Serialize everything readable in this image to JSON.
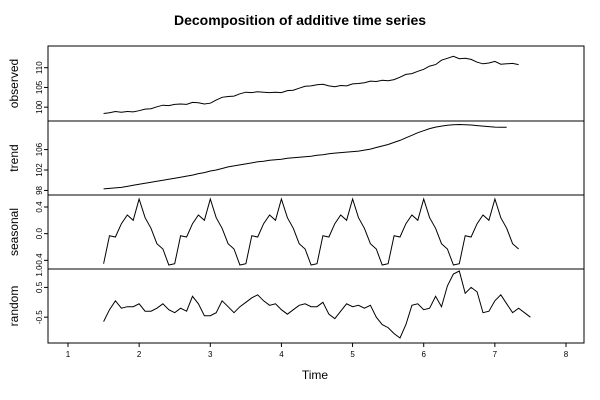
{
  "chart_data": {
    "type": "line",
    "title": "Decomposition of additive time series",
    "xlabel": "Time",
    "xlim": [
      1,
      8
    ],
    "x_ticks": [
      "1",
      "2",
      "3",
      "4",
      "5",
      "6",
      "7",
      "8"
    ],
    "x_start": 1.5,
    "x_step": 0.0833333,
    "panels": [
      {
        "name": "observed",
        "ylabel": "observed",
        "ylim": [
          97,
          115
        ],
        "y_ticks": [
          "100",
          "105",
          "110"
        ],
        "values": [
          98.4,
          98.6,
          98.9,
          98.7,
          98.9,
          98.8,
          99.1,
          99.5,
          99.6,
          100.1,
          100.5,
          100.4,
          100.7,
          100.8,
          100.7,
          101.2,
          101.1,
          100.8,
          101.0,
          101.8,
          102.5,
          102.7,
          102.8,
          103.4,
          103.8,
          103.7,
          103.9,
          103.8,
          103.7,
          103.8,
          103.7,
          104.2,
          104.3,
          104.8,
          105.3,
          105.4,
          105.7,
          105.8,
          105.4,
          105.2,
          105.5,
          105.4,
          105.9,
          106.0,
          106.2,
          106.6,
          106.5,
          106.8,
          106.7,
          107.0,
          107.6,
          108.3,
          108.5,
          109.1,
          109.6,
          110.4,
          110.8,
          111.9,
          112.4,
          112.9,
          112.3,
          112.4,
          112.1,
          111.4,
          111.0,
          111.2,
          111.6,
          110.9,
          111.0,
          111.1,
          110.8
        ]
      },
      {
        "name": "trend",
        "ylabel": "trend",
        "ylim": [
          97.5,
          111.2
        ],
        "y_ticks": [
          "98",
          "102",
          "106"
        ],
        "values": [
          98.3,
          98.4,
          98.5,
          98.6,
          98.8,
          99.0,
          99.2,
          99.4,
          99.6,
          99.8,
          100.0,
          100.2,
          100.4,
          100.6,
          100.8,
          101.0,
          101.3,
          101.5,
          101.8,
          102.0,
          102.3,
          102.6,
          102.8,
          103.0,
          103.2,
          103.4,
          103.6,
          103.7,
          103.9,
          104.0,
          104.1,
          104.3,
          104.4,
          104.5,
          104.6,
          104.7,
          104.9,
          105.0,
          105.2,
          105.3,
          105.4,
          105.5,
          105.6,
          105.7,
          105.9,
          106.1,
          106.4,
          106.7,
          107.0,
          107.4,
          107.8,
          108.3,
          108.8,
          109.3,
          109.7,
          110.1,
          110.4,
          110.6,
          110.75,
          110.85,
          110.9,
          110.85,
          110.8,
          110.7,
          110.6,
          110.5,
          110.4,
          110.35,
          110.35
        ]
      },
      {
        "name": "seasonal",
        "ylabel": "seasonal",
        "ylim": [
          -0.5,
          0.55
        ],
        "y_ticks": [
          "-0.4",
          "0.0",
          "0.4"
        ],
        "values": [
          -0.45,
          -0.03,
          -0.05,
          0.15,
          0.28,
          0.2,
          0.52,
          0.24,
          0.08,
          -0.15,
          -0.23,
          -0.47
        ]
      },
      {
        "name": "random",
        "ylabel": "random",
        "ylim": [
          -1.3,
          1.05
        ],
        "y_ticks": [
          "-0.5",
          "0.5"
        ],
        "top_tick": "1.0",
        "values": [
          -0.65,
          -0.25,
          0.05,
          -0.2,
          -0.15,
          -0.15,
          -0.05,
          -0.3,
          -0.3,
          -0.2,
          -0.05,
          -0.25,
          -0.35,
          -0.2,
          -0.3,
          0.2,
          -0.05,
          -0.45,
          -0.45,
          -0.35,
          0.05,
          -0.15,
          -0.35,
          -0.15,
          0.0,
          0.15,
          0.25,
          0.05,
          -0.1,
          -0.05,
          -0.25,
          -0.4,
          -0.25,
          -0.1,
          -0.05,
          -0.15,
          -0.15,
          0.0,
          -0.4,
          -0.55,
          -0.3,
          -0.05,
          -0.15,
          -0.1,
          -0.2,
          -0.1,
          -0.5,
          -0.75,
          -0.85,
          -1.05,
          -1.2,
          -0.75,
          -0.1,
          -0.05,
          -0.25,
          -0.2,
          0.2,
          -0.15,
          0.55,
          0.95,
          1.05,
          0.3,
          0.5,
          0.35,
          -0.35,
          -0.3,
          0.05,
          0.25,
          -0.05,
          -0.35,
          -0.2,
          -0.35,
          -0.5
        ]
      }
    ]
  }
}
